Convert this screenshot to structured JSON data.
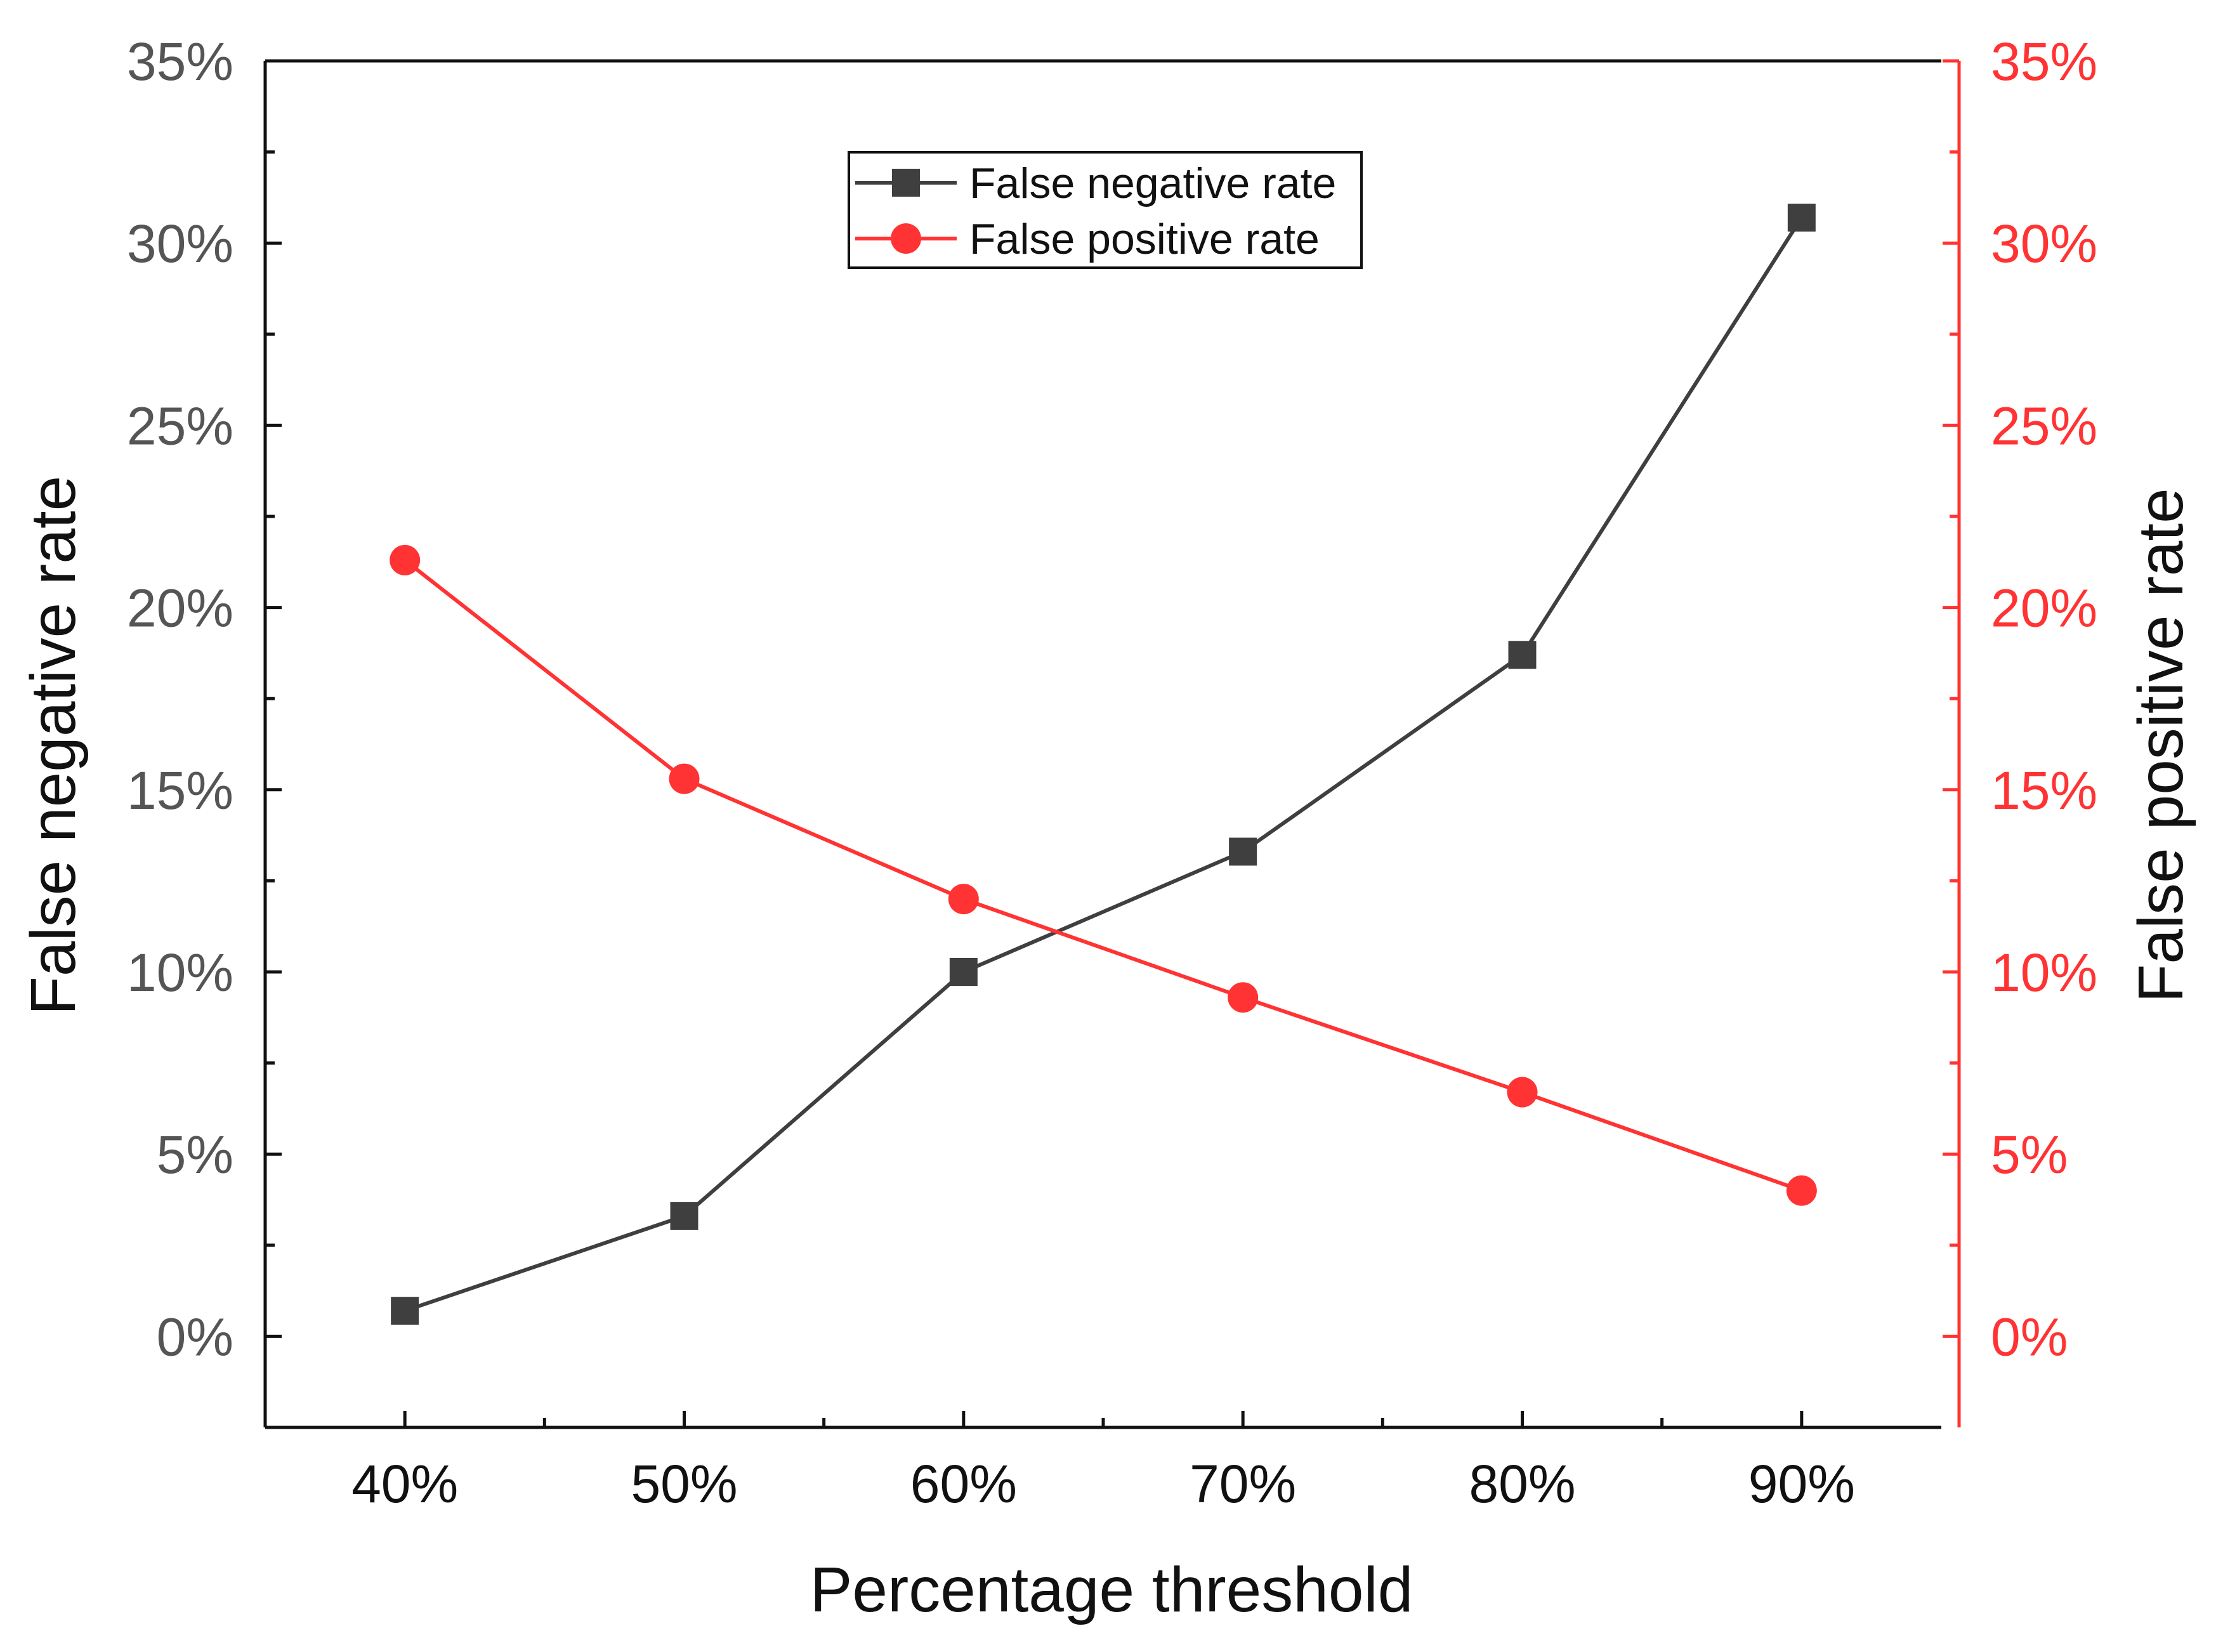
{
  "chart_data": {
    "type": "line",
    "title": "",
    "x": [
      40,
      50,
      60,
      70,
      80,
      90
    ],
    "xtick_labels": [
      "40%",
      "50%",
      "60%",
      "70%",
      "80%",
      "90%"
    ],
    "xlabel": "Percentage threshold",
    "ylabel_left": "False negative rate",
    "ylabel_right": "False positive rate",
    "ylim": [
      -2.5,
      35
    ],
    "yticks": [
      0,
      5,
      10,
      15,
      20,
      25,
      30,
      35
    ],
    "ytick_labels": [
      "0%",
      "5%",
      "10%",
      "15%",
      "20%",
      "25%",
      "30%",
      "35%"
    ],
    "xlim": [
      35,
      95
    ],
    "series": [
      {
        "name": "False negative rate",
        "axis": "left",
        "marker": "square",
        "color": "#3f3f3f",
        "values": [
          0.7,
          3.3,
          10.0,
          13.3,
          18.7,
          30.7
        ]
      },
      {
        "name": "False positive rate",
        "axis": "right",
        "marker": "circle",
        "color": "#ff3333",
        "values": [
          21.3,
          15.3,
          12.0,
          9.3,
          6.7,
          4.0
        ]
      }
    ],
    "legend_position": "top-center",
    "grid": false
  },
  "colors": {
    "left_axis": "#3f3f3f",
    "right_axis": "#ff3333",
    "frame": "#111111"
  }
}
